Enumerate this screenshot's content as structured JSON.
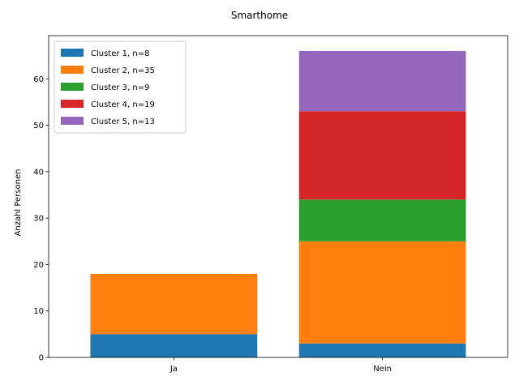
{
  "chart_data": {
    "type": "bar",
    "stacked": true,
    "title": "Smarthome",
    "xlabel": "",
    "ylabel": "Anzahl Personen",
    "categories": [
      "Ja",
      "Nein"
    ],
    "ylim": [
      0,
      69.3
    ],
    "yticks": [
      0,
      10,
      20,
      30,
      40,
      50,
      60
    ],
    "legend_position": "top-left",
    "grid": false,
    "series": [
      {
        "name": "Cluster 1, n=8",
        "color": "#1f77b4",
        "values": [
          5,
          3
        ]
      },
      {
        "name": "Cluster 2, n=35",
        "color": "#ff7f0e",
        "values": [
          13,
          22
        ]
      },
      {
        "name": "Cluster 3, n=9",
        "color": "#2ca02c",
        "values": [
          0,
          9
        ]
      },
      {
        "name": "Cluster 4, n=19",
        "color": "#d62728",
        "values": [
          0,
          19
        ]
      },
      {
        "name": "Cluster 5, n=13",
        "color": "#9467bd",
        "values": [
          0,
          13
        ]
      }
    ]
  }
}
